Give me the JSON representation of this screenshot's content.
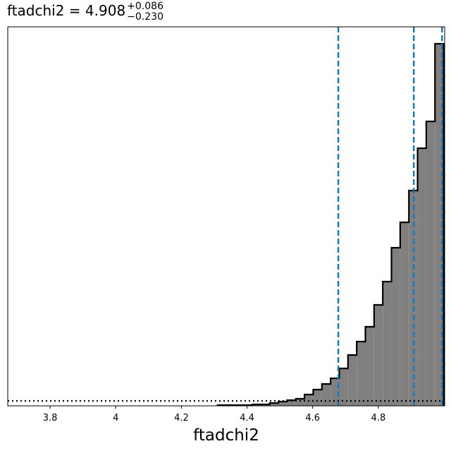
{
  "chart_data": {
    "type": "histogram",
    "title": "ftadchi2 = 4.908",
    "title_upper": "+0.086",
    "title_lower": "−0.230",
    "x_label": "ftadchi2",
    "bins": [
      4.31,
      4.3365,
      4.363,
      4.3895,
      4.416,
      4.4425,
      4.469,
      4.4955,
      4.522,
      4.5485,
      4.575,
      4.6015,
      4.628,
      4.6545,
      4.681,
      4.7075,
      4.734,
      4.7605,
      4.787,
      4.8135,
      4.84,
      4.8665,
      4.893,
      4.9195,
      4.946,
      4.9725,
      4.999
    ],
    "values": [
      1,
      1,
      1,
      1,
      2,
      2,
      4,
      6,
      8,
      10,
      16,
      23,
      31,
      39,
      53,
      72,
      91,
      112,
      143,
      176,
      224,
      260,
      305,
      365,
      403,
      513
    ],
    "color": "#808080",
    "edge_color": "#000000",
    "quantiles": [
      4.678,
      4.908,
      4.994
    ],
    "quantile_color": "#1f77b4",
    "reference_line": 7,
    "xlim": [
      3.671,
      5.002
    ],
    "ylim": [
      0,
      537
    ],
    "xticks": [
      3.8,
      4.0,
      4.2,
      4.4,
      4.6,
      4.8
    ]
  }
}
